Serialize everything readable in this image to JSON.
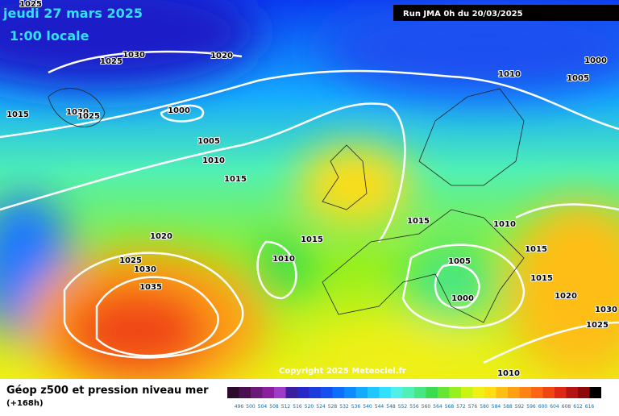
{
  "header": {
    "date": "jeudi 27 mars 2025",
    "time": "1:00 locale",
    "run": "Run JMA 0h du 20/03/2025"
  },
  "isobars": [
    "1025",
    "1025",
    "1030",
    "1020",
    "1015",
    "1020",
    "1025",
    "1000",
    "1005",
    "1010",
    "1015",
    "1010",
    "1005",
    "1000",
    "1020",
    "1025",
    "1030",
    "1035",
    "1010",
    "1015",
    "1015",
    "1010",
    "1015",
    "1005",
    "1015",
    "1000",
    "1020",
    "1030",
    "1025",
    "1010"
  ],
  "copyright": "Copyright 2025 Meteociel.fr",
  "footer": {
    "title": "Géop z500 et pression niveau mer",
    "subtitle": "(+168h)"
  },
  "scale": {
    "colors": [
      "#2b0a2b",
      "#4a1050",
      "#6b1a78",
      "#8c1ea0",
      "#9e3cc8",
      "#3c1ea0",
      "#2828c8",
      "#1e3cdc",
      "#1450f0",
      "#0a6eff",
      "#0a8cff",
      "#14aaff",
      "#1ec8ff",
      "#32e1ff",
      "#50f0e6",
      "#50f0b4",
      "#46e682",
      "#3cdc50",
      "#64e632",
      "#96f01e",
      "#c8f514",
      "#f0f014",
      "#ffdc14",
      "#ffbe14",
      "#ffa014",
      "#ff8214",
      "#ff6414",
      "#f04614",
      "#dc2814",
      "#b41414",
      "#8c0a0a",
      "#000000"
    ],
    "labels": [
      "496",
      "500",
      "504",
      "508",
      "512",
      "516",
      "520",
      "524",
      "528",
      "532",
      "536",
      "540",
      "544",
      "548",
      "552",
      "556",
      "560",
      "564",
      "568",
      "572",
      "576",
      "580",
      "584",
      "588",
      "592",
      "596",
      "600",
      "604",
      "608",
      "612",
      "616"
    ]
  }
}
